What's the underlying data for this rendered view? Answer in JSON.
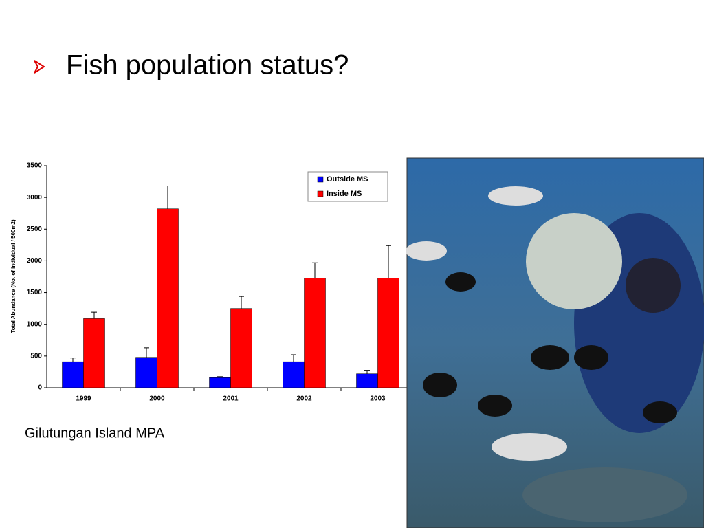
{
  "slide": {
    "title": "Fish population status?",
    "caption": "Gilutungan Island MPA"
  },
  "chart_data": {
    "type": "bar",
    "y_label": "Total Abundance (No. of individual / 500m2)",
    "categories": [
      "1999",
      "2000",
      "2001",
      "2002",
      "2003"
    ],
    "series": [
      {
        "name": "Outside MS",
        "color": "#0000ff",
        "values": [
          410,
          480,
          160,
          410,
          220
        ],
        "errors": [
          60,
          150,
          15,
          110,
          55
        ]
      },
      {
        "name": "Inside MS",
        "color": "#ff0000",
        "values": [
          1090,
          2820,
          1250,
          1730,
          1730
        ],
        "errors": [
          100,
          360,
          190,
          240,
          510
        ]
      }
    ],
    "ylim": [
      0,
      3500
    ],
    "yticks": [
      0,
      500,
      1000,
      1500,
      2000,
      2500,
      3000,
      3500
    ],
    "grid": false,
    "legend": "top-right"
  }
}
